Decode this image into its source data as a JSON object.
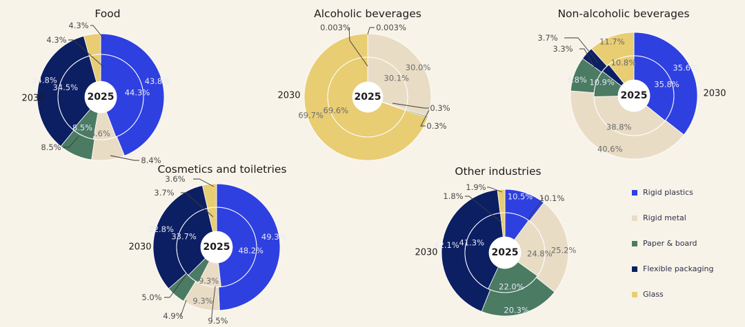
{
  "colors": {
    "rigid_plastics": "#2f40e0",
    "rigid_metal": "#e9dcc5",
    "paper_board": "#4b7b63",
    "flexible_packaging": "#0c1f63",
    "glass": "#e8cd73",
    "text": "#1c1c1c",
    "label_on_dark": "#e6e8f5",
    "label_on_light": "#6b6b6b"
  },
  "legend": [
    {
      "key": "rigid_plastics",
      "label": "Rigid plastics"
    },
    {
      "key": "rigid_metal",
      "label": "Rigid metal"
    },
    {
      "key": "paper_board",
      "label": "Paper & board"
    },
    {
      "key": "flexible_packaging",
      "label": "Flexible packaging"
    },
    {
      "key": "glass",
      "label": "Glass"
    }
  ],
  "chart_data": [
    {
      "type": "pie",
      "title": "Food",
      "center_label": "2025",
      "outer_label": "2030",
      "categories": [
        "Rigid plastics",
        "Rigid metal",
        "Paper & board",
        "Flexible packaging",
        "Glass"
      ],
      "series": [
        {
          "name": "2025",
          "values": [
            44.3,
            8.6,
            8.5,
            34.5,
            4.3
          ],
          "labels": [
            "44.3%",
            "8.6%",
            "8.5%",
            "34.5%",
            "4.3%"
          ]
        },
        {
          "name": "2030",
          "values": [
            43.8,
            8.4,
            8.5,
            34.8,
            4.3
          ],
          "labels": [
            "43.8%",
            "8.4%",
            "8.5%",
            "34.8%",
            "4.3%"
          ]
        }
      ]
    },
    {
      "type": "pie",
      "title": "Alcoholic beverages",
      "center_label": "2025",
      "outer_label": "2030",
      "categories": [
        "Rigid plastics",
        "Rigid metal",
        "Paper & board",
        "Flexible packaging",
        "Glass"
      ],
      "series": [
        {
          "name": "2025",
          "values": [
            0.003,
            30.1,
            0.3,
            0.0,
            69.6
          ],
          "labels": [
            "0.003%",
            "30.1%",
            "0.3%",
            "",
            "69.6%"
          ]
        },
        {
          "name": "2030",
          "values": [
            0.003,
            30.0,
            0.3,
            0.0,
            69.7
          ],
          "labels": [
            "0.003%",
            "30.0%",
            "0.3%",
            "",
            "69.7%"
          ]
        }
      ]
    },
    {
      "type": "pie",
      "title": "Non-alcoholic beverages",
      "center_label": "2025",
      "outer_label": "2030",
      "categories": [
        "Rigid plastics",
        "Rigid metal",
        "Paper & board",
        "Flexible packaging",
        "Glass"
      ],
      "series": [
        {
          "name": "2025",
          "values": [
            35.8,
            38.8,
            10.9,
            3.7,
            10.8
          ],
          "labels": [
            "35.8%",
            "38.8%",
            "10.9%",
            "",
            "10.8%"
          ]
        },
        {
          "name": "2030",
          "values": [
            35.6,
            40.6,
            8.8,
            3.3,
            11.7
          ],
          "labels": [
            "35.6%",
            "40.6%",
            "8.8%",
            "3.3%",
            "11.7%"
          ]
        }
      ],
      "callouts": [
        "3.7%"
      ]
    },
    {
      "type": "pie",
      "title": "Cosmetics and toiletries",
      "center_label": "2025",
      "outer_label": "2030",
      "categories": [
        "Rigid plastics",
        "Rigid metal",
        "Paper & board",
        "Flexible packaging",
        "Glass"
      ],
      "series": [
        {
          "name": "2025",
          "values": [
            48.2,
            9.3,
            5.0,
            33.7,
            3.7
          ],
          "labels": [
            "48.2%",
            "9.3%",
            "5.0%",
            "33.7%",
            "3.7%"
          ]
        },
        {
          "name": "2030",
          "values": [
            49.3,
            9.5,
            4.9,
            32.8,
            3.6
          ],
          "labels": [
            "49.3%",
            "9.5%",
            "4.9%",
            "32.8%",
            "3.6%"
          ]
        }
      ]
    },
    {
      "type": "pie",
      "title": "Other industries",
      "center_label": "2025",
      "outer_label": "2030",
      "categories": [
        "Rigid plastics",
        "Rigid metal",
        "Paper & board",
        "Flexible packaging",
        "Glass"
      ],
      "series": [
        {
          "name": "2025",
          "values": [
            10.1,
            24.8,
            22.0,
            41.3,
            1.8
          ],
          "labels": [
            "10.1%",
            "24.8%",
            "22.0%",
            "41.3%",
            "1.8%"
          ]
        },
        {
          "name": "2030",
          "values": [
            10.5,
            25.2,
            20.3,
            42.1,
            1.9
          ],
          "labels": [
            "10.5%",
            "25.2%",
            "20.3%",
            "42.1%",
            "1.9%"
          ]
        }
      ]
    }
  ]
}
